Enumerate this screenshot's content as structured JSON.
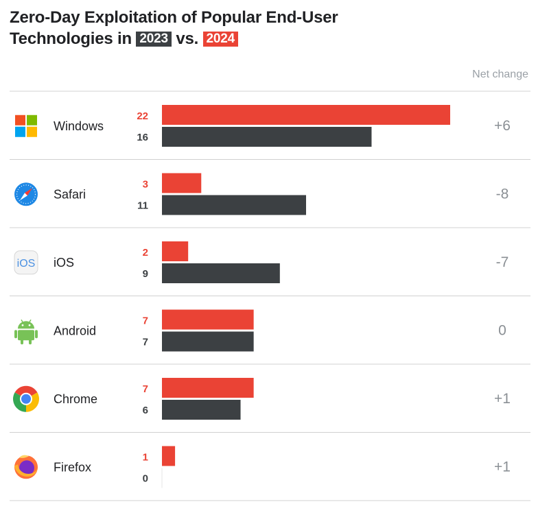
{
  "title": {
    "line1": "Zero-Day Exploitation of Popular End-User",
    "line2_prefix": "Technologies in",
    "year_a": "2023",
    "connector": "vs.",
    "year_b": "2024"
  },
  "net_change_header": "Net change",
  "colors": {
    "series_2024": "#ea4335",
    "series_2023": "#3c4043",
    "gridline": "#d0d0d0",
    "net_change_text": "#8a8f94",
    "label_2024": "#ea4335",
    "label_2023": "#3c4043"
  },
  "chart_data": {
    "type": "bar",
    "orientation": "horizontal",
    "title": "Zero-Day Exploitation of Popular End-User Technologies in 2023 vs. 2024",
    "categories": [
      "Windows",
      "Safari",
      "iOS",
      "Android",
      "Chrome",
      "Firefox"
    ],
    "icons": [
      "windows-logo",
      "safari-logo",
      "ios-logo",
      "android-logo",
      "chrome-logo",
      "firefox-logo"
    ],
    "series": [
      {
        "name": "2024",
        "values": [
          22,
          3,
          2,
          7,
          7,
          1
        ]
      },
      {
        "name": "2023",
        "values": [
          16,
          11,
          9,
          7,
          6,
          0
        ]
      }
    ],
    "net_change": [
      "+6",
      "-8",
      "-7",
      "0",
      "+1",
      "+1"
    ],
    "xlim": [
      0,
      22
    ],
    "grid": false,
    "legend": "title"
  }
}
